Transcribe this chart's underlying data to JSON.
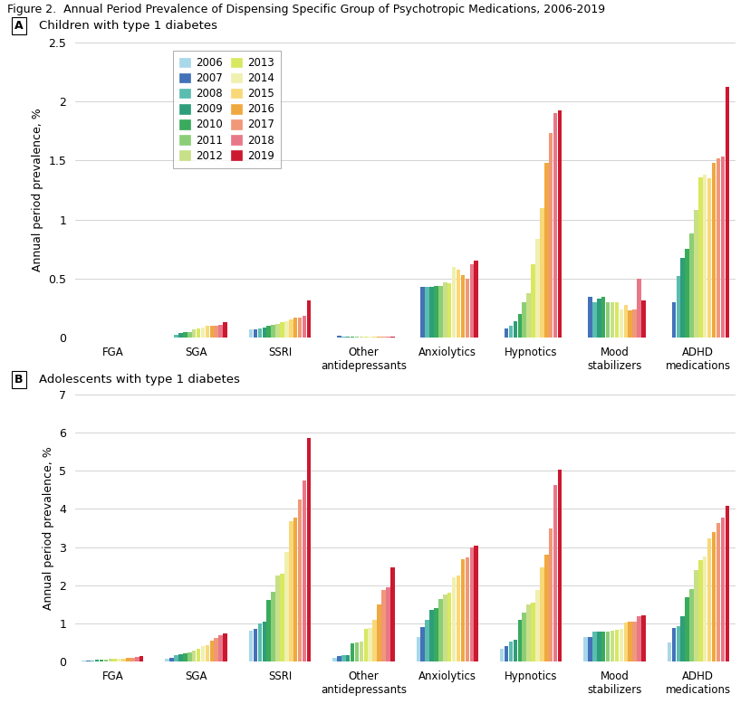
{
  "title": "Figure 2.  Annual Period Prevalence of Dispensing Specific Group of Psychotropic Medications, 2006-2019",
  "years": [
    2006,
    2007,
    2008,
    2009,
    2010,
    2011,
    2012,
    2013,
    2014,
    2015,
    2016,
    2017,
    2018,
    2019
  ],
  "year_colors": [
    "#a8d8ea",
    "#4472b8",
    "#5bbcb0",
    "#2e9e7a",
    "#3aaa5c",
    "#8cce78",
    "#c8e088",
    "#d8e860",
    "#f0f0b0",
    "#f8d878",
    "#f0a840",
    "#f09878",
    "#e87888",
    "#cc1830"
  ],
  "categories": [
    "FGA",
    "SGA",
    "SSRI",
    "Other\nantidepressants",
    "Anxiolytics",
    "Hypnotics",
    "Mood\nstabilizers",
    "ADHD\nmedications"
  ],
  "panel_A_label": "A",
  "panel_A_title": "Children with type 1 diabetes",
  "panel_B_label": "B",
  "panel_B_title": "Adolescents with type 1 diabetes",
  "ylabel": "Annual period prevalence, %",
  "panel_A_ylim": [
    0,
    2.5
  ],
  "panel_A_yticks": [
    0,
    0.5,
    1.0,
    1.5,
    2.0,
    2.5
  ],
  "panel_B_ylim": [
    0,
    7
  ],
  "panel_B_yticks": [
    0,
    1,
    2,
    3,
    4,
    5,
    6,
    7
  ],
  "panel_A_data": {
    "FGA": [
      0.0,
      0.0,
      0.0,
      0.0,
      0.0,
      0.0,
      0.0,
      0.0,
      0.0,
      0.0,
      0.0,
      0.0,
      0.0,
      0.0
    ],
    "SGA": [
      0.0,
      0.0,
      0.03,
      0.04,
      0.05,
      0.05,
      0.07,
      0.08,
      0.09,
      0.1,
      0.1,
      0.1,
      0.11,
      0.13
    ],
    "SSRI": [
      0.07,
      0.07,
      0.08,
      0.09,
      0.1,
      0.11,
      0.12,
      0.13,
      0.14,
      0.16,
      0.17,
      0.17,
      0.19,
      0.32
    ],
    "Other\nantidepressants": [
      0.0,
      0.02,
      0.01,
      0.01,
      0.01,
      0.01,
      0.01,
      0.01,
      0.01,
      0.01,
      0.01,
      0.01,
      0.01,
      0.01
    ],
    "Anxiolytics": [
      0.0,
      0.43,
      0.43,
      0.43,
      0.44,
      0.44,
      0.47,
      0.46,
      0.6,
      0.58,
      0.53,
      0.5,
      0.62,
      0.65
    ],
    "Hypnotics": [
      0.0,
      0.08,
      0.1,
      0.14,
      0.2,
      0.3,
      0.38,
      0.62,
      0.84,
      1.1,
      1.48,
      1.73,
      1.9,
      1.92
    ],
    "Mood\nstabilizers": [
      0.0,
      0.35,
      0.3,
      0.33,
      0.35,
      0.3,
      0.3,
      0.3,
      0.24,
      0.28,
      0.23,
      0.24,
      0.5,
      0.32
    ],
    "ADHD\nmedications": [
      0.0,
      0.3,
      0.52,
      0.68,
      0.75,
      0.88,
      1.08,
      1.36,
      1.38,
      1.35,
      1.48,
      1.52,
      1.53,
      2.12
    ]
  },
  "panel_B_data": {
    "FGA": [
      0.04,
      0.04,
      0.04,
      0.05,
      0.05,
      0.06,
      0.07,
      0.07,
      0.08,
      0.09,
      0.1,
      0.11,
      0.12,
      0.14
    ],
    "SGA": [
      0.08,
      0.1,
      0.17,
      0.2,
      0.22,
      0.25,
      0.3,
      0.35,
      0.4,
      0.44,
      0.55,
      0.62,
      0.7,
      0.75
    ],
    "SSRI": [
      0.82,
      0.85,
      1.0,
      1.05,
      1.62,
      1.82,
      2.25,
      2.3,
      2.88,
      3.68,
      3.78,
      4.25,
      4.75,
      5.85
    ],
    "Other\nantidepressants": [
      0.1,
      0.15,
      0.17,
      0.17,
      0.48,
      0.5,
      0.52,
      0.85,
      0.88,
      1.1,
      1.5,
      1.88,
      1.95,
      2.48
    ],
    "Anxiolytics": [
      0.65,
      0.9,
      1.1,
      1.35,
      1.4,
      1.65,
      1.75,
      1.8,
      2.2,
      2.25,
      2.68,
      2.72,
      2.98,
      3.03
    ],
    "Hypnotics": [
      0.35,
      0.4,
      0.52,
      0.58,
      1.1,
      1.28,
      1.5,
      1.55,
      1.88,
      2.48,
      2.8,
      3.5,
      4.62,
      5.02
    ],
    "Mood\nstabilizers": [
      0.65,
      0.65,
      0.78,
      0.8,
      0.8,
      0.8,
      0.82,
      0.83,
      0.86,
      1.03,
      1.05,
      1.05,
      1.2,
      1.22
    ],
    "ADHD\nmedications": [
      0.5,
      0.88,
      0.92,
      1.18,
      1.7,
      1.9,
      2.4,
      2.65,
      2.75,
      3.22,
      3.4,
      3.62,
      3.78,
      4.08
    ]
  }
}
